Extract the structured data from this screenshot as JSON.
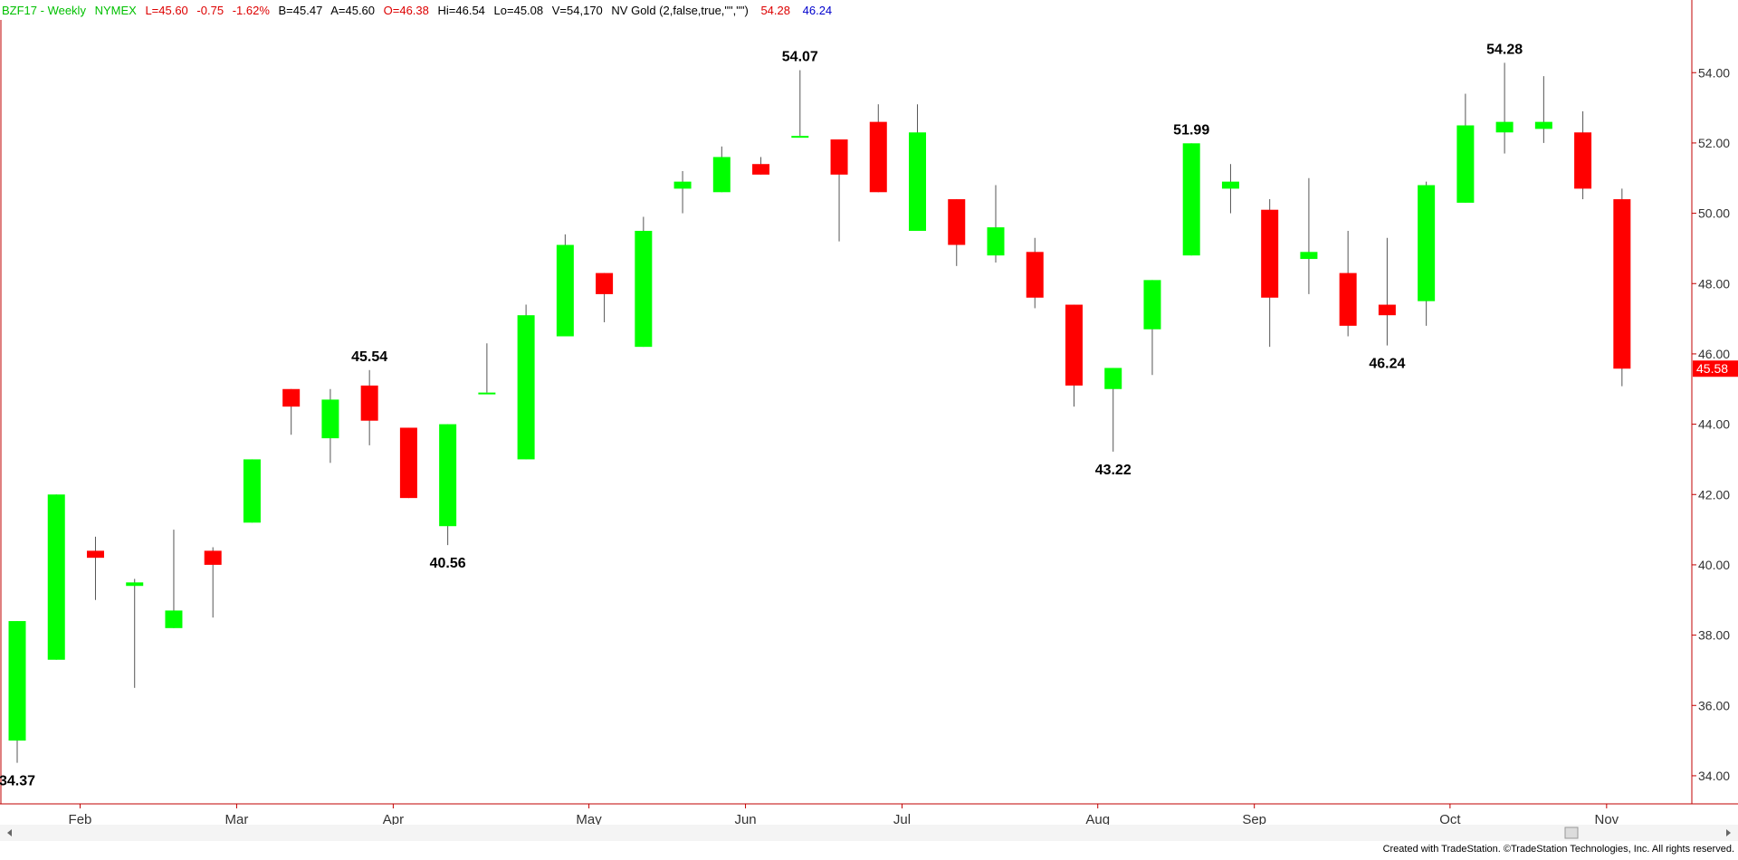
{
  "header": {
    "symbol": "BZF17 - Weekly",
    "exchange": "NYMEX",
    "last": "L=45.60",
    "change": "-0.75",
    "change_pct": "-1.62%",
    "bid": "B=45.47",
    "ask": "A=45.60",
    "open": "O=46.38",
    "high": "Hi=46.54",
    "low": "Lo=45.08",
    "volume": "V=54,170",
    "indicator": "NV Gold (2,false,true,\"\",\"\")",
    "indicator_val1": "54.28",
    "indicator_val2": "46.24"
  },
  "footer": {
    "credit": "Created with TradeStation. ©TradeStation Technologies, Inc. All rights reserved."
  },
  "colors": {
    "up": "#00ff00",
    "down": "#ff0000",
    "wick": "#555555",
    "axis": "#c00000",
    "label": "#000000",
    "header_green": "#00c000",
    "header_red": "#dd0000",
    "header_blue": "#0000cc",
    "last_price_bg": "#ff0000"
  },
  "chart_data": {
    "type": "candlestick",
    "interval": "weekly",
    "ylim": [
      33.2,
      55.5
    ],
    "y_ticks": [
      34,
      36,
      38,
      40,
      42,
      44,
      46,
      48,
      50,
      52,
      54
    ],
    "y_tick_labels": [
      "34.00",
      "36.00",
      "38.00",
      "40.00",
      "42.00",
      "44.00",
      "46.00",
      "48.00",
      "50.00",
      "52.00",
      "54.00"
    ],
    "x_labels": [
      {
        "label": "Feb",
        "index": 2
      },
      {
        "label": "Mar",
        "index": 6
      },
      {
        "label": "Apr",
        "index": 10
      },
      {
        "label": "May",
        "index": 15
      },
      {
        "label": "Jun",
        "index": 19
      },
      {
        "label": "Jul",
        "index": 23
      },
      {
        "label": "Aug",
        "index": 28
      },
      {
        "label": "Sep",
        "index": 32
      },
      {
        "label": "Oct",
        "index": 37
      },
      {
        "label": "Nov",
        "index": 41
      }
    ],
    "last_price": "45.58",
    "candles": [
      {
        "o": 35.0,
        "h": 38.4,
        "l": 34.37,
        "c": 38.4
      },
      {
        "o": 37.3,
        "h": 42.0,
        "l": 37.3,
        "c": 42.0
      },
      {
        "o": 40.4,
        "h": 40.8,
        "l": 39.0,
        "c": 40.2
      },
      {
        "o": 39.4,
        "h": 39.6,
        "l": 36.5,
        "c": 39.5
      },
      {
        "o": 38.2,
        "h": 41.0,
        "l": 38.2,
        "c": 38.7
      },
      {
        "o": 40.4,
        "h": 40.5,
        "l": 38.5,
        "c": 40.0
      },
      {
        "o": 41.2,
        "h": 43.0,
        "l": 41.2,
        "c": 43.0
      },
      {
        "o": 45.0,
        "h": 45.0,
        "l": 43.7,
        "c": 44.5
      },
      {
        "o": 43.6,
        "h": 45.0,
        "l": 42.9,
        "c": 44.7
      },
      {
        "o": 45.1,
        "h": 45.54,
        "l": 43.4,
        "c": 44.1
      },
      {
        "o": 43.9,
        "h": 43.9,
        "l": 41.9,
        "c": 41.9
      },
      {
        "o": 41.1,
        "h": 44.0,
        "l": 40.56,
        "c": 44.0
      },
      {
        "o": 44.9,
        "h": 46.3,
        "l": 44.9,
        "c": 44.9
      },
      {
        "o": 43.0,
        "h": 47.4,
        "l": 43.0,
        "c": 47.1
      },
      {
        "o": 46.5,
        "h": 49.4,
        "l": 46.5,
        "c": 49.1
      },
      {
        "o": 48.3,
        "h": 48.3,
        "l": 46.9,
        "c": 47.7
      },
      {
        "o": 46.2,
        "h": 49.9,
        "l": 46.2,
        "c": 49.5
      },
      {
        "o": 50.7,
        "h": 51.2,
        "l": 50.0,
        "c": 50.9
      },
      {
        "o": 50.6,
        "h": 51.9,
        "l": 50.6,
        "c": 51.6
      },
      {
        "o": 51.4,
        "h": 51.6,
        "l": 51.1,
        "c": 51.1
      },
      {
        "o": 52.2,
        "h": 54.07,
        "l": 52.2,
        "c": 52.2
      },
      {
        "o": 52.1,
        "h": 52.1,
        "l": 49.2,
        "c": 51.1
      },
      {
        "o": 52.6,
        "h": 53.1,
        "l": 50.6,
        "c": 50.6
      },
      {
        "o": 49.5,
        "h": 53.1,
        "l": 49.5,
        "c": 52.3
      },
      {
        "o": 50.4,
        "h": 50.4,
        "l": 48.5,
        "c": 49.1
      },
      {
        "o": 48.8,
        "h": 50.8,
        "l": 48.6,
        "c": 49.6
      },
      {
        "o": 48.9,
        "h": 49.3,
        "l": 47.3,
        "c": 47.6
      },
      {
        "o": 47.4,
        "h": 47.4,
        "l": 44.5,
        "c": 45.1
      },
      {
        "o": 45.0,
        "h": 45.6,
        "l": 43.22,
        "c": 45.6
      },
      {
        "o": 46.7,
        "h": 48.1,
        "l": 45.4,
        "c": 48.1
      },
      {
        "o": 48.8,
        "h": 51.99,
        "l": 48.8,
        "c": 51.99
      },
      {
        "o": 50.7,
        "h": 51.4,
        "l": 50.0,
        "c": 50.9
      },
      {
        "o": 50.1,
        "h": 50.4,
        "l": 46.2,
        "c": 47.6
      },
      {
        "o": 48.7,
        "h": 51.0,
        "l": 47.7,
        "c": 48.9
      },
      {
        "o": 48.3,
        "h": 49.5,
        "l": 46.5,
        "c": 46.8
      },
      {
        "o": 47.4,
        "h": 49.3,
        "l": 46.24,
        "c": 47.1
      },
      {
        "o": 47.5,
        "h": 50.9,
        "l": 46.8,
        "c": 50.8
      },
      {
        "o": 50.3,
        "h": 53.4,
        "l": 50.3,
        "c": 52.5
      },
      {
        "o": 52.3,
        "h": 54.28,
        "l": 51.7,
        "c": 52.6
      },
      {
        "o": 52.4,
        "h": 53.9,
        "l": 52.0,
        "c": 52.6
      },
      {
        "o": 52.3,
        "h": 52.9,
        "l": 50.4,
        "c": 50.7
      },
      {
        "o": 50.4,
        "h": 50.7,
        "l": 45.08,
        "c": 45.58
      }
    ],
    "annotations": [
      {
        "text": "34.37",
        "index": 0,
        "price": 34.37,
        "pos": "below"
      },
      {
        "text": "45.54",
        "index": 9,
        "price": 45.54,
        "pos": "above"
      },
      {
        "text": "40.56",
        "index": 11,
        "price": 40.56,
        "pos": "below"
      },
      {
        "text": "54.07",
        "index": 20,
        "price": 54.07,
        "pos": "above"
      },
      {
        "text": "43.22",
        "index": 28,
        "price": 43.22,
        "pos": "below"
      },
      {
        "text": "51.99",
        "index": 30,
        "price": 51.99,
        "pos": "above"
      },
      {
        "text": "46.24",
        "index": 35,
        "price": 46.24,
        "pos": "below"
      },
      {
        "text": "54.28",
        "index": 38,
        "price": 54.28,
        "pos": "above"
      }
    ]
  }
}
